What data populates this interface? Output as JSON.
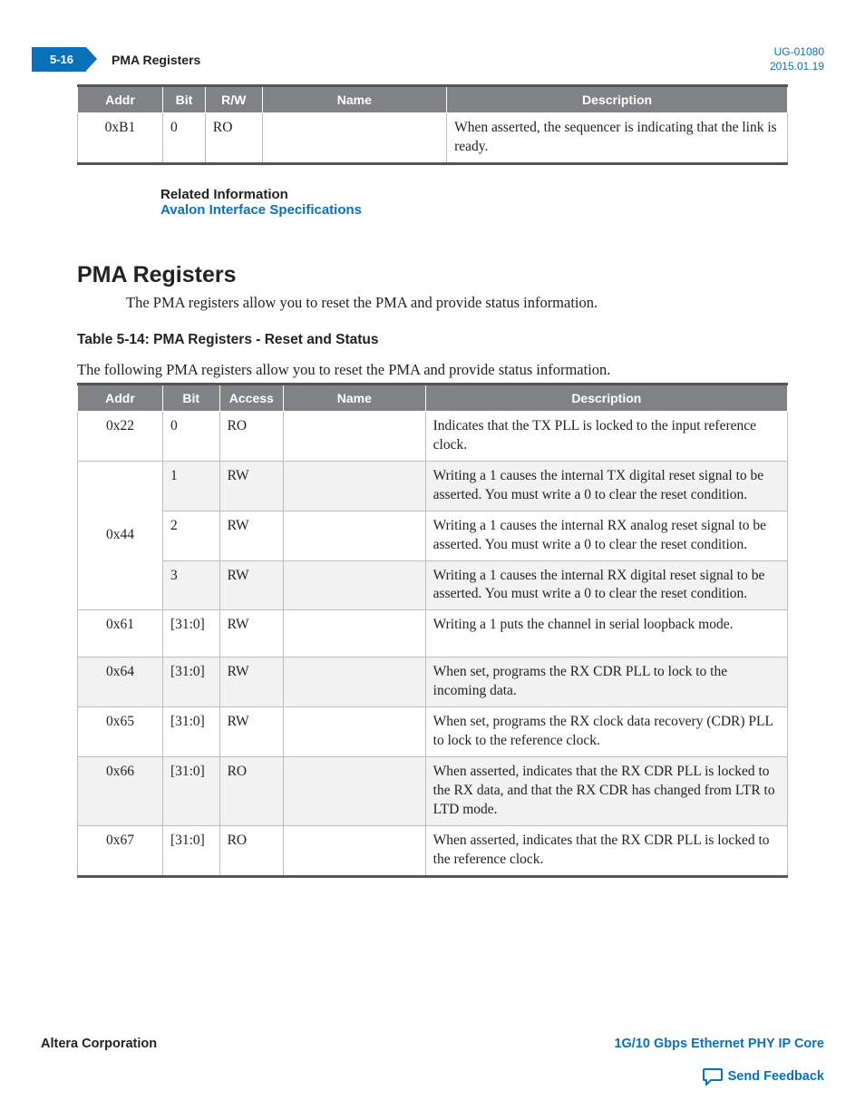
{
  "header": {
    "page_number": "5-16",
    "section_title": "PMA Registers",
    "doc_id": "UG-01080",
    "doc_date": "2015.01.19"
  },
  "colors": {
    "brand_blue": "#0a71b8",
    "table_header_bg": "#808285",
    "table_header_fg": "#ffffff",
    "row_alt_bg": "#f2f2f2",
    "border_gray": "#bdbdbd",
    "rule_gray": "#555555"
  },
  "table1": {
    "headers": {
      "addr": "Addr",
      "bit": "Bit",
      "rw": "R/W",
      "name": "Name",
      "desc": "Description"
    },
    "col_widths_pct": [
      12,
      6,
      8,
      26,
      48
    ],
    "rows": [
      {
        "addr": "0xB1",
        "bit": "0",
        "rw": "RO",
        "name": "",
        "desc": "When asserted, the sequencer is indicating that the link is ready."
      }
    ]
  },
  "related": {
    "label": "Related Information",
    "link_text": "Avalon Interface Specifications"
  },
  "section": {
    "heading": "PMA Registers",
    "intro": "The PMA registers allow you to reset the PMA and provide status information."
  },
  "table2_caption": "Table 5-14: PMA Registers - Reset and Status",
  "table2_desc": "The following PMA registers allow you to reset the PMA and provide status information.",
  "table2": {
    "headers": {
      "addr": "Addr",
      "bit": "Bit",
      "access": "Access",
      "name": "Name",
      "desc": "Description"
    },
    "col_widths_pct": [
      12,
      8,
      9,
      20,
      51
    ],
    "rows": [
      {
        "addr": "0x22",
        "bit": "0",
        "access": "RO",
        "name": "",
        "desc": "Indicates that the TX PLL is locked to the input reference clock.",
        "shade": false,
        "addr_rowspan": 1
      },
      {
        "addr": "0x44",
        "bit": "1",
        "access": "RW",
        "name": "",
        "desc": "Writing a 1 causes the internal TX digital reset signal to be asserted. You must write a 0 to clear the reset condition.",
        "shade": true,
        "addr_rowspan": 3
      },
      {
        "addr": "",
        "bit": "2",
        "access": "RW",
        "name": "",
        "desc": "Writing a 1 causes the internal RX analog reset signal to be asserted. You must write a 0 to clear the reset condition.",
        "shade": false,
        "addr_rowspan": 0
      },
      {
        "addr": "",
        "bit": "3",
        "access": "RW",
        "name": "",
        "desc": "Writing a 1 causes the internal RX digital reset signal to be asserted. You must write a 0 to clear the reset condition.",
        "shade": true,
        "addr_rowspan": 0
      },
      {
        "addr": "0x61",
        "bit": "[31:0]",
        "access": "RW",
        "name": "",
        "desc": "Writing a 1 puts the channel in serial loopback mode.",
        "shade": false,
        "addr_rowspan": 1,
        "extra_pad": true
      },
      {
        "addr": "0x64",
        "bit": "[31:0]",
        "access": "RW",
        "name": "",
        "desc": "When set, programs the RX CDR PLL to lock to the incoming data.",
        "shade": true,
        "addr_rowspan": 1
      },
      {
        "addr": "0x65",
        "bit": "[31:0]",
        "access": "RW",
        "name": "",
        "desc": "When set, programs the RX clock data recovery (CDR) PLL to lock to the reference clock.",
        "shade": false,
        "addr_rowspan": 1
      },
      {
        "addr": "0x66",
        "bit": "[31:0]",
        "access": "RO",
        "name": "",
        "desc": "When asserted, indicates that the RX CDR PLL is locked to the RX data, and that the RX CDR has changed from LTR to LTD mode.",
        "shade": true,
        "addr_rowspan": 1
      },
      {
        "addr": "0x67",
        "bit": "[31:0]",
        "access": "RO",
        "name": "",
        "desc": "When asserted, indicates that the RX CDR PLL is locked to the reference clock.",
        "shade": false,
        "addr_rowspan": 1
      }
    ]
  },
  "footer": {
    "corp": "Altera Corporation",
    "product": "1G/10 Gbps Ethernet PHY IP Core",
    "feedback": "Send Feedback"
  }
}
